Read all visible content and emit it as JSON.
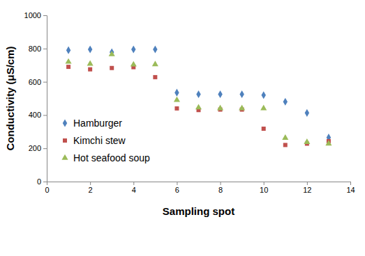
{
  "chart_data": {
    "type": "scatter",
    "x_label": "Sampling spot",
    "y_label": "Conductivity (μS/cm)",
    "x": [
      1,
      2,
      3,
      4,
      5,
      6,
      7,
      8,
      9,
      10,
      11,
      12,
      13
    ],
    "series": [
      {
        "name": "Hamburger",
        "color": "#4f81bd",
        "marker": "diamond",
        "values": [
          790,
          795,
          778,
          795,
          795,
          535,
          525,
          525,
          525,
          520,
          480,
          413,
          265
        ]
      },
      {
        "name": "Kimchi stew",
        "color": "#c0504d",
        "marker": "square",
        "values": [
          690,
          675,
          683,
          688,
          628,
          440,
          430,
          433,
          433,
          318,
          220,
          228,
          243
        ]
      },
      {
        "name": "Hot seafood soup",
        "color": "#9bbb59",
        "marker": "triangle",
        "values": [
          720,
          708,
          765,
          703,
          705,
          490,
          445,
          440,
          440,
          440,
          262,
          237,
          228
        ]
      }
    ],
    "xlim": [
      0,
      14
    ],
    "xticks": [
      0,
      2,
      4,
      6,
      8,
      10,
      12,
      14
    ],
    "ylim": [
      0,
      1000
    ],
    "yticks": [
      0,
      200,
      400,
      600,
      800,
      1000
    ],
    "grid": false,
    "legend": "lower left"
  }
}
